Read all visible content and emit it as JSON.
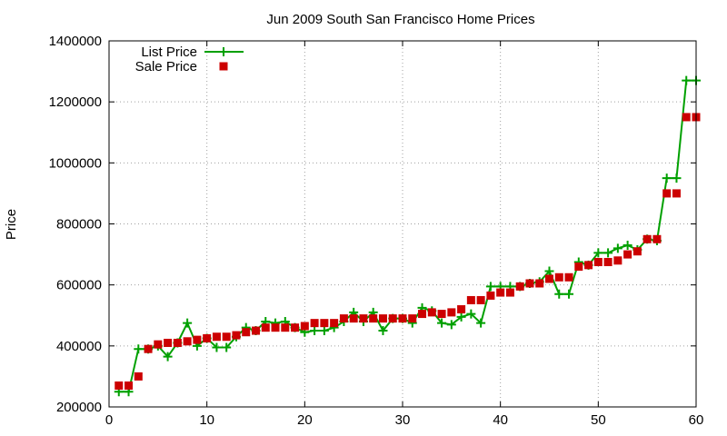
{
  "chart_data": {
    "type": "line",
    "title": "Jun 2009 South San Francisco Home Prices",
    "xlabel": "",
    "ylabel": "Price",
    "xlim": [
      0,
      60
    ],
    "ylim": [
      200000,
      1400000
    ],
    "xticks": [
      0,
      10,
      20,
      30,
      40,
      50,
      60
    ],
    "yticks": [
      200000,
      400000,
      600000,
      800000,
      1000000,
      1200000,
      1400000
    ],
    "grid": true,
    "legend_position": "top-left",
    "series": [
      {
        "name": "List Price",
        "style": "line+cross",
        "color": "#00a000",
        "x": [
          1,
          2,
          3,
          4,
          5,
          6,
          7,
          8,
          9,
          10,
          11,
          12,
          13,
          14,
          15,
          16,
          17,
          18,
          19,
          20,
          21,
          22,
          23,
          24,
          25,
          26,
          27,
          28,
          29,
          30,
          31,
          32,
          33,
          34,
          35,
          36,
          37,
          38,
          39,
          40,
          41,
          42,
          43,
          44,
          45,
          46,
          47,
          48,
          49,
          50,
          51,
          52,
          53,
          54,
          55,
          56,
          57,
          58,
          59,
          60
        ],
        "values": [
          250000,
          250000,
          390000,
          390000,
          400000,
          365000,
          410000,
          475000,
          400000,
          425000,
          395000,
          395000,
          430000,
          460000,
          450000,
          480000,
          475000,
          480000,
          460000,
          445000,
          450000,
          450000,
          460000,
          480000,
          510000,
          480000,
          510000,
          450000,
          490000,
          490000,
          475000,
          525000,
          515000,
          475000,
          470000,
          495000,
          505000,
          475000,
          595000,
          595000,
          595000,
          595000,
          605000,
          610000,
          645000,
          570000,
          570000,
          675000,
          665000,
          705000,
          705000,
          720000,
          730000,
          715000,
          750000,
          745000,
          950000,
          950000,
          1270000,
          1270000
        ]
      },
      {
        "name": "Sale Price",
        "style": "square",
        "color": "#cc0000",
        "x": [
          1,
          2,
          3,
          4,
          5,
          6,
          7,
          8,
          9,
          10,
          11,
          12,
          13,
          14,
          15,
          16,
          17,
          18,
          19,
          20,
          21,
          22,
          23,
          24,
          25,
          26,
          27,
          28,
          29,
          30,
          31,
          32,
          33,
          34,
          35,
          36,
          37,
          38,
          39,
          40,
          41,
          42,
          43,
          44,
          45,
          46,
          47,
          48,
          49,
          50,
          51,
          52,
          53,
          54,
          55,
          56,
          57,
          58,
          59,
          60
        ],
        "values": [
          270000,
          270000,
          300000,
          390000,
          405000,
          410000,
          410000,
          415000,
          420000,
          425000,
          430000,
          430000,
          435000,
          445000,
          450000,
          460000,
          460000,
          460000,
          460000,
          465000,
          475000,
          475000,
          475000,
          490000,
          490000,
          490000,
          490000,
          490000,
          490000,
          490000,
          490000,
          505000,
          510000,
          505000,
          510000,
          520000,
          550000,
          550000,
          565000,
          575000,
          575000,
          595000,
          605000,
          605000,
          620000,
          625000,
          625000,
          660000,
          665000,
          675000,
          675000,
          680000,
          700000,
          710000,
          750000,
          750000,
          900000,
          900000,
          1150000,
          1150000
        ]
      }
    ]
  }
}
